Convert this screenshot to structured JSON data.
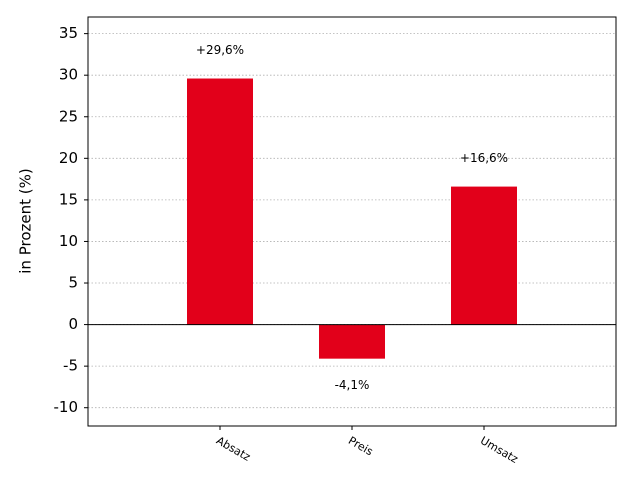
{
  "chart_data": {
    "type": "bar",
    "ylabel": "in Prozent (%)",
    "categories": [
      "Absatz",
      "Preis",
      "Umsatz"
    ],
    "values": [
      29.6,
      -4.1,
      16.6
    ],
    "value_labels": [
      "+29,6%",
      "-4,1%",
      "+16,6%"
    ],
    "color": "#e2001a",
    "ylim": [
      -12.2,
      37
    ],
    "yticks": [
      -10,
      -5,
      0,
      5,
      10,
      15,
      20,
      25,
      30,
      35
    ],
    "grid": true
  }
}
